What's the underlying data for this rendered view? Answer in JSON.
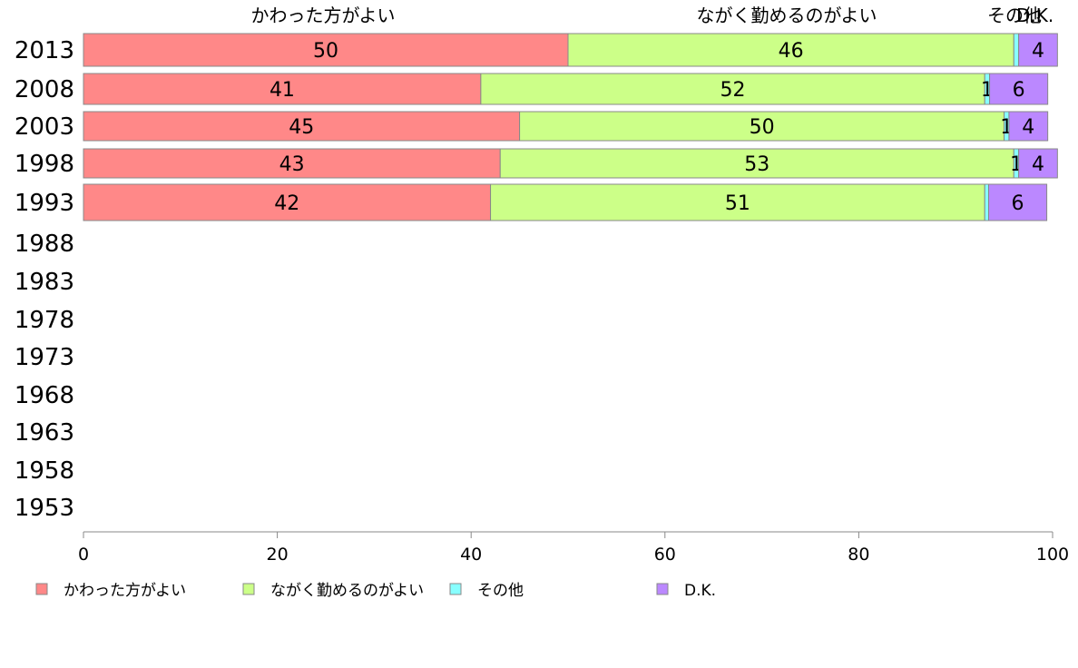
{
  "chart_data": {
    "type": "bar",
    "orientation": "horizontal",
    "stacked": true,
    "categories": [
      "2013",
      "2008",
      "2003",
      "1998",
      "1993",
      "1988",
      "1983",
      "1978",
      "1973",
      "1968",
      "1963",
      "1958",
      "1953"
    ],
    "series": [
      {
        "name": "かわった方がよい",
        "color": "#FF8888",
        "values": [
          50,
          41,
          45,
          43,
          42,
          null,
          null,
          null,
          null,
          null,
          null,
          null,
          null
        ],
        "labels": [
          "50",
          "41",
          "45",
          "43",
          "42"
        ]
      },
      {
        "name": "ながく勤めるのがよい",
        "color": "#CCFF88",
        "values": [
          46,
          52,
          50,
          53,
          51,
          null,
          null,
          null,
          null,
          null,
          null,
          null,
          null
        ],
        "labels": [
          "46",
          "52",
          "50",
          "53",
          "51"
        ]
      },
      {
        "name": "その他",
        "color": "#88FFFF",
        "values": [
          0.5,
          0.5,
          0.5,
          0.5,
          0.4,
          null,
          null,
          null,
          null,
          null,
          null,
          null,
          null
        ],
        "labels": [
          "",
          "1",
          "1",
          "1",
          ""
        ]
      },
      {
        "name": "D.K.",
        "color": "#BB88FF",
        "values": [
          4,
          6,
          4,
          4,
          6,
          null,
          null,
          null,
          null,
          null,
          null,
          null,
          null
        ],
        "labels": [
          "4",
          "6",
          "4",
          "4",
          "6"
        ]
      }
    ],
    "header_labels": [
      "かわった方がよい",
      "ながく勤めるのがよい",
      "その他",
      "D.K."
    ],
    "xlim": [
      0,
      100
    ],
    "xticks": [
      "0",
      "20",
      "40",
      "60",
      "80",
      "100"
    ],
    "grid": false,
    "legend": "bottom"
  }
}
